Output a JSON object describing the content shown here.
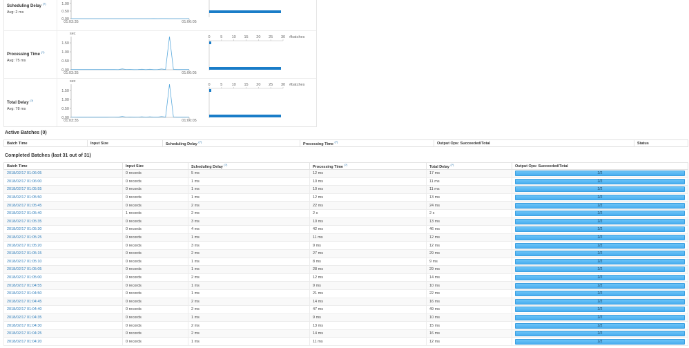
{
  "stats": {
    "help_marker": "(?)",
    "rows": [
      {
        "title": "Scheduling Delay",
        "avg": "Avg: 2 ms",
        "y_unit": "",
        "y_ticks": [
          "1.00",
          "0.50",
          "0.00"
        ],
        "x_ticks": [
          "01:03:35",
          "01:06:05"
        ],
        "hist_ticks": [],
        "hist_unit": ""
      },
      {
        "title": "Processing Time",
        "avg": "Avg: 75 ms",
        "y_unit": "sec",
        "y_ticks": [
          "1.50",
          "1.00",
          "0.50",
          "0.00"
        ],
        "x_ticks": [
          "01:03:35",
          "01:06:05"
        ],
        "hist_ticks": [
          "0",
          "5",
          "10",
          "15",
          "20",
          "25",
          "30"
        ],
        "hist_unit": "#batches"
      },
      {
        "title": "Total Delay",
        "avg": "Avg: 78 ms",
        "y_unit": "sec",
        "y_ticks": [
          "1.50",
          "1.00",
          "0.50",
          "0.00"
        ],
        "x_ticks": [
          "01:03:35",
          "01:06:05"
        ],
        "hist_ticks": [
          "0",
          "5",
          "10",
          "15",
          "20",
          "25",
          "30"
        ],
        "hist_unit": "#batches"
      }
    ]
  },
  "chart_data": [
    {
      "type": "line",
      "title": "Scheduling Delay",
      "ylabel": "sec",
      "x": [
        "01:03:35",
        "01:03:40",
        "01:03:45",
        "01:03:50",
        "01:03:55",
        "01:04:00",
        "01:04:05",
        "01:04:10",
        "01:04:15",
        "01:04:20",
        "01:04:25",
        "01:04:30",
        "01:04:35",
        "01:04:40",
        "01:04:45",
        "01:04:50",
        "01:04:55",
        "01:05:00",
        "01:05:05",
        "01:05:10",
        "01:05:15",
        "01:05:20",
        "01:05:25",
        "01:05:30",
        "01:05:35",
        "01:05:40",
        "01:05:45",
        "01:05:50",
        "01:05:55",
        "01:06:00",
        "01:06:05"
      ],
      "values": [
        0.002,
        0.002,
        0.002,
        0.002,
        0.002,
        0.002,
        0.002,
        0.002,
        0.002,
        0.001,
        0.002,
        0.002,
        0.001,
        0.002,
        0.002,
        0.001,
        0.001,
        0.002,
        0.001,
        0.001,
        0.002,
        0.003,
        0.001,
        0.004,
        0.003,
        0.002,
        0.002,
        0.001,
        0.001,
        0.001,
        0.005
      ],
      "xlim": [
        "01:03:35",
        "01:06:05"
      ],
      "ylim": [
        0,
        1.0
      ],
      "y_ticks": [
        0.0,
        0.5,
        1.0
      ],
      "histogram": {
        "xlabel": "#batches",
        "bins": [
          {
            "range_top": false,
            "count": 31
          }
        ]
      }
    },
    {
      "type": "line",
      "title": "Processing Time",
      "ylabel": "sec",
      "x": [
        "01:03:35",
        "01:03:40",
        "01:03:45",
        "01:03:50",
        "01:03:55",
        "01:04:00",
        "01:04:05",
        "01:04:10",
        "01:04:15",
        "01:04:20",
        "01:04:25",
        "01:04:30",
        "01:04:35",
        "01:04:40",
        "01:04:45",
        "01:04:50",
        "01:04:55",
        "01:05:00",
        "01:05:05",
        "01:05:10",
        "01:05:15",
        "01:05:20",
        "01:05:25",
        "01:05:30",
        "01:05:35",
        "01:05:40",
        "01:05:45",
        "01:05:50",
        "01:05:55",
        "01:06:00",
        "01:06:05"
      ],
      "values": [
        0.015,
        0.012,
        0.01,
        0.012,
        0.011,
        0.013,
        0.01,
        0.012,
        0.011,
        0.011,
        0.014,
        0.013,
        0.009,
        0.047,
        0.014,
        0.021,
        0.009,
        0.012,
        0.028,
        0.008,
        0.027,
        0.009,
        0.011,
        0.042,
        0.01,
        1.85,
        0.022,
        0.012,
        0.01,
        0.01,
        0.012
      ],
      "xlim": [
        "01:03:35",
        "01:06:05"
      ],
      "ylim": [
        0,
        1.85
      ],
      "y_ticks": [
        0.0,
        0.5,
        1.0,
        1.5
      ],
      "histogram": {
        "xlabel": "#batches",
        "x_ticks": [
          0,
          5,
          10,
          15,
          20,
          25,
          30
        ],
        "bins": [
          {
            "bin": "top (~1.85 s)",
            "count": 1
          },
          {
            "bin": "bottom (~0 s)",
            "count": 30
          }
        ]
      }
    },
    {
      "type": "line",
      "title": "Total Delay",
      "ylabel": "sec",
      "x": [
        "01:03:35",
        "01:03:40",
        "01:03:45",
        "01:03:50",
        "01:03:55",
        "01:04:00",
        "01:04:05",
        "01:04:10",
        "01:04:15",
        "01:04:20",
        "01:04:25",
        "01:04:30",
        "01:04:35",
        "01:04:40",
        "01:04:45",
        "01:04:50",
        "01:04:55",
        "01:05:00",
        "01:05:05",
        "01:05:10",
        "01:05:15",
        "01:05:20",
        "01:05:25",
        "01:05:30",
        "01:05:35",
        "01:05:40",
        "01:05:45",
        "01:05:50",
        "01:05:55",
        "01:06:00",
        "01:06:05"
      ],
      "values": [
        0.017,
        0.014,
        0.012,
        0.014,
        0.013,
        0.015,
        0.012,
        0.014,
        0.013,
        0.012,
        0.016,
        0.015,
        0.01,
        0.049,
        0.016,
        0.022,
        0.01,
        0.014,
        0.029,
        0.009,
        0.029,
        0.012,
        0.012,
        0.046,
        0.013,
        1.85,
        0.024,
        0.013,
        0.011,
        0.011,
        0.017
      ],
      "xlim": [
        "01:03:35",
        "01:06:05"
      ],
      "ylim": [
        0,
        1.85
      ],
      "y_ticks": [
        0.0,
        0.5,
        1.0,
        1.5
      ],
      "histogram": {
        "xlabel": "#batches",
        "x_ticks": [
          0,
          5,
          10,
          15,
          20,
          25,
          30
        ],
        "bins": [
          {
            "bin": "top (~1.85 s)",
            "count": 1
          },
          {
            "bin": "bottom (~0 s)",
            "count": 30
          }
        ]
      }
    }
  ],
  "active": {
    "title": "Active Batches (0)",
    "headers": [
      "Batch Time",
      "Input Size",
      "Scheduling Delay",
      "Processing Time",
      "Output Ops: Succeeded/Total",
      "Status"
    ]
  },
  "completed": {
    "title": "Completed Batches (last 31 out of 31)",
    "headers": [
      "Batch Time",
      "Input Size",
      "Scheduling Delay",
      "Processing Time",
      "Total Delay",
      "Output Ops: Succeeded/Total"
    ],
    "rows": [
      {
        "time": "2018/02/17 01:06:05",
        "input": "0 records",
        "sched": "5 ms",
        "proc": "12 ms",
        "total": "17 ms",
        "ops": "2/2"
      },
      {
        "time": "2018/02/17 01:06:00",
        "input": "0 records",
        "sched": "1 ms",
        "proc": "10 ms",
        "total": "11 ms",
        "ops": "2/2"
      },
      {
        "time": "2018/02/17 01:05:55",
        "input": "0 records",
        "sched": "1 ms",
        "proc": "10 ms",
        "total": "11 ms",
        "ops": "2/2"
      },
      {
        "time": "2018/02/17 01:05:50",
        "input": "0 records",
        "sched": "1 ms",
        "proc": "12 ms",
        "total": "13 ms",
        "ops": "2/2"
      },
      {
        "time": "2018/02/17 01:05:45",
        "input": "0 records",
        "sched": "2 ms",
        "proc": "22 ms",
        "total": "24 ms",
        "ops": "2/2"
      },
      {
        "time": "2018/02/17 01:05:40",
        "input": "1 records",
        "sched": "2 ms",
        "proc": "2 s",
        "total": "2 s",
        "ops": "2/2"
      },
      {
        "time": "2018/02/17 01:05:35",
        "input": "0 records",
        "sched": "3 ms",
        "proc": "10 ms",
        "total": "13 ms",
        "ops": "2/2"
      },
      {
        "time": "2018/02/17 01:05:30",
        "input": "0 records",
        "sched": "4 ms",
        "proc": "42 ms",
        "total": "46 ms",
        "ops": "2/2"
      },
      {
        "time": "2018/02/17 01:05:25",
        "input": "0 records",
        "sched": "1 ms",
        "proc": "11 ms",
        "total": "12 ms",
        "ops": "2/2"
      },
      {
        "time": "2018/02/17 01:05:20",
        "input": "0 records",
        "sched": "3 ms",
        "proc": "9 ms",
        "total": "12 ms",
        "ops": "2/2"
      },
      {
        "time": "2018/02/17 01:05:15",
        "input": "0 records",
        "sched": "2 ms",
        "proc": "27 ms",
        "total": "29 ms",
        "ops": "2/2"
      },
      {
        "time": "2018/02/17 01:05:10",
        "input": "0 records",
        "sched": "1 ms",
        "proc": "8 ms",
        "total": "9 ms",
        "ops": "2/2"
      },
      {
        "time": "2018/02/17 01:05:05",
        "input": "0 records",
        "sched": "1 ms",
        "proc": "28 ms",
        "total": "29 ms",
        "ops": "2/2"
      },
      {
        "time": "2018/02/17 01:05:00",
        "input": "0 records",
        "sched": "2 ms",
        "proc": "12 ms",
        "total": "14 ms",
        "ops": "2/2"
      },
      {
        "time": "2018/02/17 01:04:55",
        "input": "0 records",
        "sched": "1 ms",
        "proc": "9 ms",
        "total": "10 ms",
        "ops": "2/2"
      },
      {
        "time": "2018/02/17 01:04:50",
        "input": "0 records",
        "sched": "1 ms",
        "proc": "21 ms",
        "total": "22 ms",
        "ops": "2/2"
      },
      {
        "time": "2018/02/17 01:04:45",
        "input": "0 records",
        "sched": "2 ms",
        "proc": "14 ms",
        "total": "16 ms",
        "ops": "2/2"
      },
      {
        "time": "2018/02/17 01:04:40",
        "input": "0 records",
        "sched": "2 ms",
        "proc": "47 ms",
        "total": "49 ms",
        "ops": "2/2"
      },
      {
        "time": "2018/02/17 01:04:35",
        "input": "0 records",
        "sched": "1 ms",
        "proc": "9 ms",
        "total": "10 ms",
        "ops": "2/2"
      },
      {
        "time": "2018/02/17 01:04:30",
        "input": "0 records",
        "sched": "2 ms",
        "proc": "13 ms",
        "total": "15 ms",
        "ops": "2/2"
      },
      {
        "time": "2018/02/17 01:04:25",
        "input": "0 records",
        "sched": "2 ms",
        "proc": "14 ms",
        "total": "16 ms",
        "ops": "2/2"
      },
      {
        "time": "2018/02/17 01:04:20",
        "input": "0 records",
        "sched": "1 ms",
        "proc": "11 ms",
        "total": "12 ms",
        "ops": "2/2"
      }
    ]
  },
  "colors": {
    "line": "#5aa9dc",
    "hist_bar": "#1a7dc8",
    "link": "#2a7ab8",
    "progress_fill": "#5bbaf5"
  }
}
